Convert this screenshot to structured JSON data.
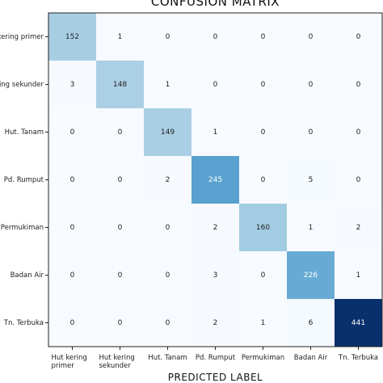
{
  "chart_data": {
    "type": "heatmap",
    "title": "CONFUSION MATRIX",
    "xlabel": "PREDICTED LABEL",
    "ylabel": "",
    "x_tick_labels": [
      [
        "Hut kering",
        "primer"
      ],
      [
        "Hut kering",
        "sekunder"
      ],
      [
        "Hut. Tanam"
      ],
      [
        "Pd. Rumput"
      ],
      [
        "Permukiman"
      ],
      [
        "Badan Air"
      ],
      [
        "Tn. Terbuka"
      ]
    ],
    "y_tick_labels": [
      "Hut kering primer",
      "Hut kering sekunder",
      "Hut. Tanam",
      "Pd. Rumput",
      "Permukiman",
      "Badan Air",
      "Tn. Terbuka"
    ],
    "values": [
      [
        152,
        1,
        0,
        0,
        0,
        0,
        0
      ],
      [
        3,
        148,
        1,
        0,
        0,
        0,
        0
      ],
      [
        0,
        0,
        149,
        1,
        0,
        0,
        0
      ],
      [
        0,
        0,
        2,
        245,
        0,
        5,
        0
      ],
      [
        0,
        0,
        0,
        2,
        160,
        1,
        2
      ],
      [
        0,
        0,
        0,
        3,
        0,
        226,
        1
      ],
      [
        0,
        0,
        0,
        2,
        1,
        6,
        441
      ]
    ],
    "colormap": "Blues",
    "vmin": 0,
    "vmax": 441,
    "colors": {
      "low": "#f7fbff",
      "mid": "#9ecae1",
      "high": "#08306b",
      "text_dark": "#222222",
      "text_light": "#ffffff"
    }
  }
}
